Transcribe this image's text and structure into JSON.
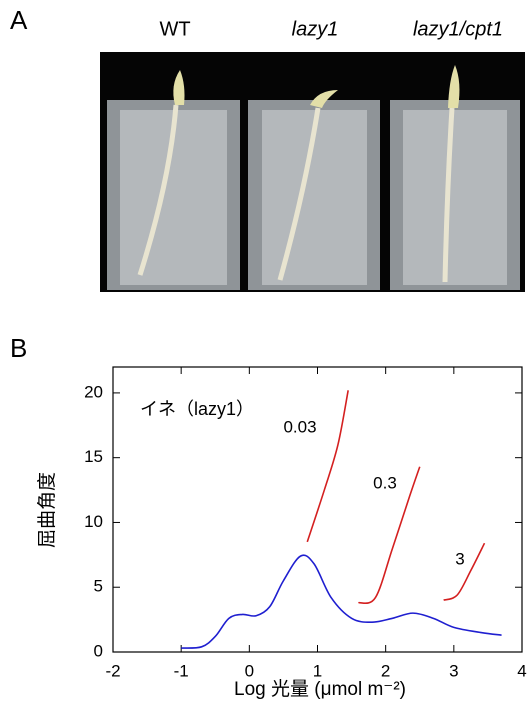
{
  "panel_a": {
    "label": "A",
    "columns": [
      "WT",
      "lazy1",
      "lazy1/cpt1"
    ]
  },
  "chart_data": {
    "type": "line",
    "label": "B",
    "annotation": "イネ（lazy1）",
    "xlabel": "Log 光量 (μmol m⁻²)",
    "ylabel": "屈曲角度",
    "xlim": [
      -2,
      4
    ],
    "ylim": [
      0,
      22
    ],
    "xticks": [
      -2,
      -1,
      0,
      1,
      2,
      3,
      4
    ],
    "yticks": [
      0,
      5,
      10,
      15,
      20
    ],
    "series": [
      {
        "color": "#1f1fd0",
        "x": [
          -1,
          -0.7,
          -0.5,
          -0.3,
          -0.1,
          0.1,
          0.3,
          0.5,
          0.75,
          0.95,
          1.2,
          1.5,
          1.8,
          2.1,
          2.4,
          2.7,
          3.0,
          3.4,
          3.7
        ],
        "values": [
          0.3,
          0.4,
          1.2,
          2.6,
          2.9,
          2.8,
          3.5,
          5.5,
          7.4,
          6.8,
          4.2,
          2.6,
          2.3,
          2.6,
          3.0,
          2.6,
          1.9,
          1.5,
          1.3
        ]
      },
      {
        "name": "0.03",
        "color": "#d42020",
        "x": [
          0.85,
          1.1,
          1.3,
          1.45
        ],
        "values": [
          8.5,
          12.5,
          16,
          20.2
        ]
      },
      {
        "name": "0.3",
        "color": "#d42020",
        "x": [
          1.6,
          1.85,
          2.1,
          2.35,
          2.5
        ],
        "values": [
          3.8,
          4.2,
          8,
          12,
          14.3
        ]
      },
      {
        "name": "3",
        "color": "#d42020",
        "x": [
          2.85,
          3.05,
          3.25,
          3.45
        ],
        "values": [
          4.0,
          4.4,
          6.3,
          8.4
        ]
      }
    ]
  }
}
